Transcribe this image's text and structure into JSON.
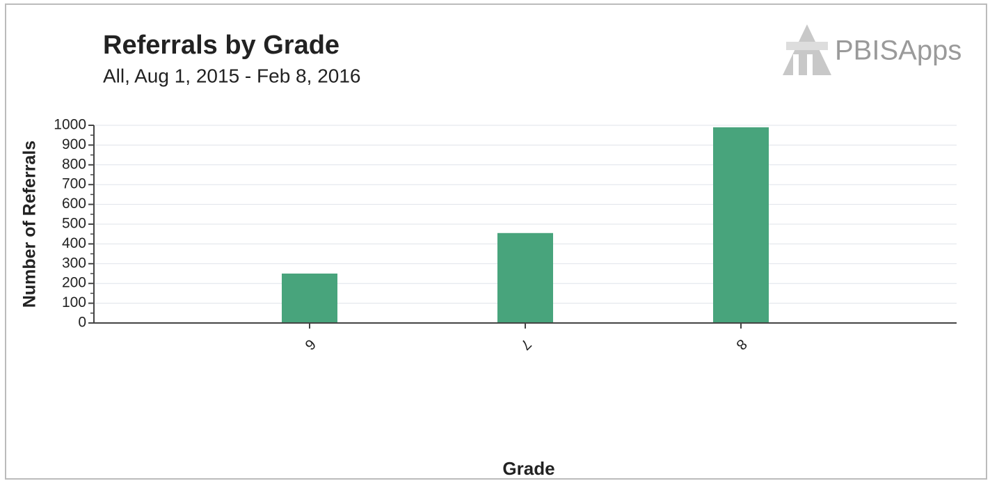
{
  "logo": "PBISApps",
  "chart_data": {
    "type": "bar",
    "title": "Referrals by Grade",
    "subtitle": "All, Aug 1, 2015 - Feb 8, 2016",
    "x_label": "Grade",
    "y_label": "Number of Referrals",
    "categories": [
      "6",
      "7",
      "8"
    ],
    "values": [
      250,
      455,
      990
    ],
    "color": "#48a47c",
    "ylim": [
      0,
      1000
    ],
    "yticks": [
      0,
      100,
      200,
      300,
      400,
      500,
      600,
      700,
      800,
      900,
      1000
    ],
    "grid": true
  }
}
